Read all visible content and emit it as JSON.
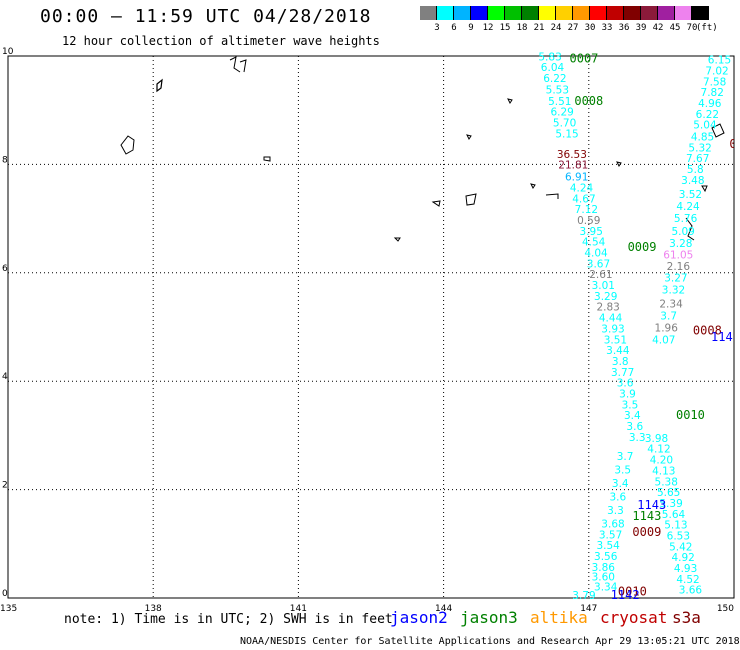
{
  "header": {
    "title": "00:00 – 11:59 UTC 04/28/2018",
    "subtitle": "12 hour collection of altimeter wave heights"
  },
  "colorbar": {
    "labels": [
      "3",
      "6",
      "9",
      "12",
      "15",
      "18",
      "21",
      "24",
      "27",
      "30",
      "33",
      "36",
      "39",
      "42",
      "45",
      "70"
    ],
    "unit": "(ft)",
    "colors": [
      "#808080",
      "#00ffff",
      "#00b4ff",
      "#0000ff",
      "#00ff00",
      "#00c000",
      "#008000",
      "#ffff00",
      "#ffd000",
      "#ff9900",
      "#ff0000",
      "#c00000",
      "#800000",
      "#8b1a3a",
      "#a020a0",
      "#ee82ee",
      "#000000"
    ]
  },
  "axes": {
    "x_ticks": [
      "135",
      "138",
      "141",
      "144",
      "147",
      "150"
    ],
    "y_ticks": [
      "0",
      "2",
      "4",
      "6",
      "8",
      "10"
    ],
    "xlim": [
      135,
      150
    ],
    "ylim": [
      0,
      10
    ]
  },
  "satellites": [
    {
      "name": "jason2",
      "color": "#0000ff"
    },
    {
      "name": "jason3",
      "color": "#008000"
    },
    {
      "name": "altika",
      "color": "#ff9900"
    },
    {
      "name": "cryosat",
      "color": "#c00000"
    },
    {
      "name": "s3a",
      "color": "#800000"
    }
  ],
  "note": "note: 1) Time is in UTC; 2) SWH is in feet",
  "credit": "NOAA/NESDIS Center for Satellite Applications and Research   Apr 29 13:05:21 UTC 2018",
  "map_data": {
    "readings": [
      {
        "t": "5.83",
        "lon": 146.2,
        "lat": 9.92,
        "c": "#00ffff"
      },
      {
        "t": "6.04",
        "lon": 146.25,
        "lat": 9.72,
        "c": "#00ffff"
      },
      {
        "t": "6.22",
        "lon": 146.3,
        "lat": 9.52,
        "c": "#00ffff"
      },
      {
        "t": "5.53",
        "lon": 146.35,
        "lat": 9.31,
        "c": "#00ffff"
      },
      {
        "t": "5.51",
        "lon": 146.4,
        "lat": 9.1,
        "c": "#00ffff"
      },
      {
        "t": "6.29",
        "lon": 146.45,
        "lat": 8.9,
        "c": "#00ffff"
      },
      {
        "t": "5.70",
        "lon": 146.5,
        "lat": 8.7,
        "c": "#00ffff"
      },
      {
        "t": "5.15",
        "lon": 146.55,
        "lat": 8.5,
        "c": "#00ffff"
      },
      {
        "t": "36.53",
        "lon": 146.65,
        "lat": 8.12,
        "c": "#800000"
      },
      {
        "t": "21.81",
        "lon": 146.68,
        "lat": 7.92,
        "c": "#8b1a3a"
      },
      {
        "t": "6.91",
        "lon": 146.75,
        "lat": 7.7,
        "c": "#00b4ff"
      },
      {
        "t": "4.24",
        "lon": 146.85,
        "lat": 7.5,
        "c": "#00ffff"
      },
      {
        "t": "4.67",
        "lon": 146.9,
        "lat": 7.3,
        "c": "#00ffff"
      },
      {
        "t": "7.12",
        "lon": 146.95,
        "lat": 7.1,
        "c": "#00ffff"
      },
      {
        "t": "0.59",
        "lon": 147.0,
        "lat": 6.9,
        "c": "#808080"
      },
      {
        "t": "3.95",
        "lon": 147.05,
        "lat": 6.7,
        "c": "#00ffff"
      },
      {
        "t": "4.54",
        "lon": 147.1,
        "lat": 6.5,
        "c": "#00ffff"
      },
      {
        "t": "4.04",
        "lon": 147.15,
        "lat": 6.3,
        "c": "#00ffff"
      },
      {
        "t": "3.67",
        "lon": 147.2,
        "lat": 6.1,
        "c": "#00ffff"
      },
      {
        "t": "2.61",
        "lon": 147.25,
        "lat": 5.9,
        "c": "#808080"
      },
      {
        "t": "3.01",
        "lon": 147.3,
        "lat": 5.7,
        "c": "#00ffff"
      },
      {
        "t": "3.29",
        "lon": 147.35,
        "lat": 5.5,
        "c": "#00ffff"
      },
      {
        "t": "2.83",
        "lon": 147.4,
        "lat": 5.3,
        "c": "#808080"
      },
      {
        "t": "4.44",
        "lon": 147.45,
        "lat": 5.1,
        "c": "#00ffff"
      },
      {
        "t": "3.93",
        "lon": 147.5,
        "lat": 4.9,
        "c": "#00ffff"
      },
      {
        "t": "3.51",
        "lon": 147.55,
        "lat": 4.7,
        "c": "#00ffff"
      },
      {
        "t": "3.44",
        "lon": 147.6,
        "lat": 4.5,
        "c": "#00ffff"
      },
      {
        "t": "3.8",
        "lon": 147.65,
        "lat": 4.3,
        "c": "#00ffff"
      },
      {
        "t": "3.77",
        "lon": 147.7,
        "lat": 4.1,
        "c": "#00ffff"
      },
      {
        "t": "3.6",
        "lon": 147.75,
        "lat": 3.9,
        "c": "#00ffff"
      },
      {
        "t": "3.9",
        "lon": 147.8,
        "lat": 3.7,
        "c": "#00ffff"
      },
      {
        "t": "3.5",
        "lon": 147.85,
        "lat": 3.5,
        "c": "#00ffff"
      },
      {
        "t": "3.4",
        "lon": 147.9,
        "lat": 3.3,
        "c": "#00ffff"
      },
      {
        "t": "3.6",
        "lon": 147.95,
        "lat": 3.1,
        "c": "#00ffff"
      },
      {
        "t": "3.3",
        "lon": 148.0,
        "lat": 2.9,
        "c": "#00ffff"
      },
      {
        "t": "3.7",
        "lon": 147.75,
        "lat": 2.55,
        "c": "#00ffff"
      },
      {
        "t": "3.5",
        "lon": 147.7,
        "lat": 2.3,
        "c": "#00ffff"
      },
      {
        "t": "3.4",
        "lon": 147.65,
        "lat": 2.05,
        "c": "#00ffff"
      },
      {
        "t": "3.6",
        "lon": 147.6,
        "lat": 1.8,
        "c": "#00ffff"
      },
      {
        "t": "3.3",
        "lon": 147.55,
        "lat": 1.55,
        "c": "#00ffff"
      },
      {
        "t": "3.68",
        "lon": 147.5,
        "lat": 1.3,
        "c": "#00ffff"
      },
      {
        "t": "3.57",
        "lon": 147.45,
        "lat": 1.1,
        "c": "#00ffff"
      },
      {
        "t": "3.54",
        "lon": 147.4,
        "lat": 0.9,
        "c": "#00ffff"
      },
      {
        "t": "3.56",
        "lon": 147.35,
        "lat": 0.7,
        "c": "#00ffff"
      },
      {
        "t": "3.86",
        "lon": 147.3,
        "lat": 0.5,
        "c": "#00ffff"
      },
      {
        "t": "3.60",
        "lon": 147.3,
        "lat": 0.32,
        "c": "#00ffff"
      },
      {
        "t": "3.34",
        "lon": 147.35,
        "lat": 0.14,
        "c": "#00ffff"
      },
      {
        "t": "3.79",
        "lon": 146.9,
        "lat": -0.02,
        "c": "#00ffff"
      },
      {
        "t": "6.15",
        "lon": 149.7,
        "lat": 9.86,
        "c": "#00ffff"
      },
      {
        "t": "7.02",
        "lon": 149.65,
        "lat": 9.66,
        "c": "#00ffff"
      },
      {
        "t": "7.58",
        "lon": 149.6,
        "lat": 9.46,
        "c": "#00ffff"
      },
      {
        "t": "7.82",
        "lon": 149.55,
        "lat": 9.26,
        "c": "#00ffff"
      },
      {
        "t": "4.96",
        "lon": 149.5,
        "lat": 9.06,
        "c": "#00ffff"
      },
      {
        "t": "6.22",
        "lon": 149.45,
        "lat": 8.86,
        "c": "#00ffff"
      },
      {
        "t": "5.04",
        "lon": 149.4,
        "lat": 8.66,
        "c": "#00ffff"
      },
      {
        "t": "4.85",
        "lon": 149.35,
        "lat": 8.44,
        "c": "#00ffff"
      },
      {
        "t": "5.32",
        "lon": 149.3,
        "lat": 8.24,
        "c": "#00ffff"
      },
      {
        "t": "7.67",
        "lon": 149.25,
        "lat": 8.04,
        "c": "#00ffff"
      },
      {
        "t": "5.8",
        "lon": 149.2,
        "lat": 7.84,
        "c": "#00ffff"
      },
      {
        "t": "3.48",
        "lon": 149.15,
        "lat": 7.64,
        "c": "#00ffff"
      },
      {
        "t": "3.52",
        "lon": 149.1,
        "lat": 7.38,
        "c": "#00ffff"
      },
      {
        "t": "4.24",
        "lon": 149.05,
        "lat": 7.16,
        "c": "#00ffff"
      },
      {
        "t": "5.76",
        "lon": 149.0,
        "lat": 6.94,
        "c": "#00ffff"
      },
      {
        "t": "5.09",
        "lon": 148.95,
        "lat": 6.7,
        "c": "#00ffff"
      },
      {
        "t": "3.28",
        "lon": 148.9,
        "lat": 6.48,
        "c": "#00ffff"
      },
      {
        "t": "61.05",
        "lon": 148.85,
        "lat": 6.26,
        "c": "#ee82ee"
      },
      {
        "t": "2.16",
        "lon": 148.85,
        "lat": 6.05,
        "c": "#808080"
      },
      {
        "t": "3.27",
        "lon": 148.8,
        "lat": 5.84,
        "c": "#00ffff"
      },
      {
        "t": "3.32",
        "lon": 148.75,
        "lat": 5.62,
        "c": "#00ffff"
      },
      {
        "t": "2.34",
        "lon": 148.7,
        "lat": 5.36,
        "c": "#808080"
      },
      {
        "t": "3.7",
        "lon": 148.65,
        "lat": 5.14,
        "c": "#00ffff"
      },
      {
        "t": "1.96",
        "lon": 148.6,
        "lat": 4.92,
        "c": "#808080"
      },
      {
        "t": "4.07",
        "lon": 148.55,
        "lat": 4.7,
        "c": "#00ffff"
      },
      {
        "t": "3.98",
        "lon": 148.4,
        "lat": 2.88,
        "c": "#00ffff"
      },
      {
        "t": "4.12",
        "lon": 148.45,
        "lat": 2.68,
        "c": "#00ffff"
      },
      {
        "t": "4.20",
        "lon": 148.5,
        "lat": 2.48,
        "c": "#00ffff"
      },
      {
        "t": "4.13",
        "lon": 148.55,
        "lat": 2.28,
        "c": "#00ffff"
      },
      {
        "t": "5.38",
        "lon": 148.6,
        "lat": 2.08,
        "c": "#00ffff"
      },
      {
        "t": "5.65",
        "lon": 148.65,
        "lat": 1.88,
        "c": "#00ffff"
      },
      {
        "t": "5.39",
        "lon": 148.7,
        "lat": 1.68,
        "c": "#00ffff"
      },
      {
        "t": "5.64",
        "lon": 148.75,
        "lat": 1.48,
        "c": "#00ffff"
      },
      {
        "t": "5.13",
        "lon": 148.8,
        "lat": 1.28,
        "c": "#00ffff"
      },
      {
        "t": "6.53",
        "lon": 148.85,
        "lat": 1.08,
        "c": "#00ffff"
      },
      {
        "t": "5.42",
        "lon": 148.9,
        "lat": 0.88,
        "c": "#00ffff"
      },
      {
        "t": "4.92",
        "lon": 148.95,
        "lat": 0.68,
        "c": "#00ffff"
      },
      {
        "t": "4.93",
        "lon": 149.0,
        "lat": 0.48,
        "c": "#00ffff"
      },
      {
        "t": "4.52",
        "lon": 149.05,
        "lat": 0.28,
        "c": "#00ffff"
      },
      {
        "t": "3.66",
        "lon": 149.1,
        "lat": 0.08,
        "c": "#00ffff"
      }
    ],
    "pass_ids": [
      {
        "t": "0007",
        "lon": 146.9,
        "lat": 9.88,
        "c": "#008000"
      },
      {
        "t": "0008",
        "lon": 147.0,
        "lat": 9.1,
        "c": "#008000"
      },
      {
        "t": "0009",
        "lon": 148.1,
        "lat": 6.4,
        "c": "#008000"
      },
      {
        "t": "0008",
        "lon": 149.45,
        "lat": 4.86,
        "c": "#800000"
      },
      {
        "t": "114",
        "lon": 149.75,
        "lat": 4.74,
        "c": "#0000ff"
      },
      {
        "t": "0010",
        "lon": 149.1,
        "lat": 3.3,
        "c": "#008000"
      },
      {
        "t": "1143",
        "lon": 148.3,
        "lat": 1.64,
        "c": "#0000ff"
      },
      {
        "t": "1143",
        "lon": 148.2,
        "lat": 1.44,
        "c": "#008000"
      },
      {
        "t": "0009",
        "lon": 148.2,
        "lat": 1.14,
        "c": "#800000"
      },
      {
        "t": "0010",
        "lon": 147.9,
        "lat": 0.05,
        "c": "#800000"
      },
      {
        "t": "1142",
        "lon": 147.75,
        "lat": -0.02,
        "c": "#0000ff"
      },
      {
        "t": "0",
        "lon": 149.98,
        "lat": 8.3,
        "c": "#800000"
      }
    ]
  }
}
